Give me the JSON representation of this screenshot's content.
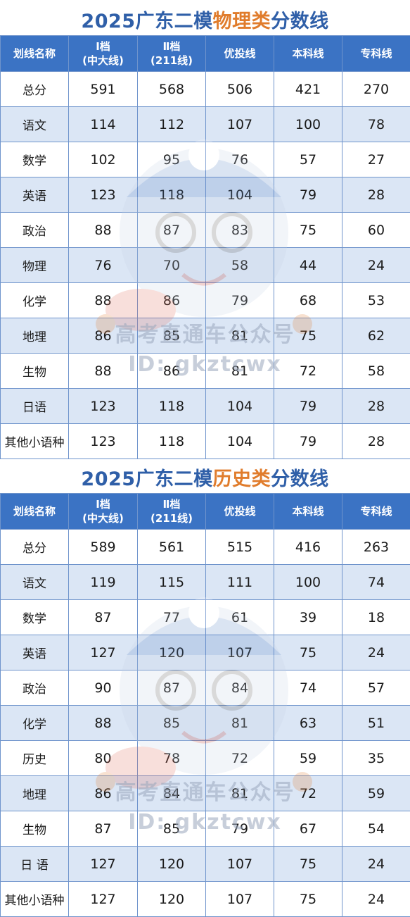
{
  "physics": {
    "title_pre": "2025广东二模",
    "title_accent": "物理类",
    "title_post": "分数线",
    "headers": [
      "划线名称",
      "Ⅰ档\n(中大线)",
      "Ⅱ档\n(211线)",
      "优投线",
      "本科线",
      "专科线"
    ],
    "rows": [
      [
        "总分",
        "591",
        "568",
        "506",
        "421",
        "270"
      ],
      [
        "语文",
        "114",
        "112",
        "107",
        "100",
        "78"
      ],
      [
        "数学",
        "102",
        "95",
        "76",
        "57",
        "27"
      ],
      [
        "英语",
        "123",
        "118",
        "104",
        "79",
        "28"
      ],
      [
        "政治",
        "88",
        "87",
        "83",
        "75",
        "60"
      ],
      [
        "物理",
        "76",
        "70",
        "58",
        "44",
        "24"
      ],
      [
        "化学",
        "88",
        "86",
        "79",
        "68",
        "53"
      ],
      [
        "地理",
        "86",
        "85",
        "81",
        "75",
        "62"
      ],
      [
        "生物",
        "88",
        "86",
        "81",
        "72",
        "58"
      ],
      [
        "日语",
        "123",
        "118",
        "104",
        "79",
        "28"
      ],
      [
        "其他小语种",
        "123",
        "118",
        "104",
        "79",
        "28"
      ]
    ]
  },
  "history": {
    "title_pre": "2025广东二模",
    "title_accent": "历史类",
    "title_post": "分数线",
    "headers": [
      "划线名称",
      "Ⅰ档\n(中大线)",
      "Ⅱ档\n(211线)",
      "优投线",
      "本科线",
      "专科线"
    ],
    "rows": [
      [
        "总分",
        "589",
        "561",
        "515",
        "416",
        "263"
      ],
      [
        "语文",
        "119",
        "115",
        "111",
        "100",
        "74"
      ],
      [
        "数学",
        "87",
        "77",
        "61",
        "39",
        "18"
      ],
      [
        "英语",
        "127",
        "120",
        "107",
        "75",
        "24"
      ],
      [
        "政治",
        "90",
        "87",
        "84",
        "74",
        "57"
      ],
      [
        "化学",
        "88",
        "85",
        "81",
        "63",
        "51"
      ],
      [
        "历史",
        "80",
        "78",
        "72",
        "59",
        "35"
      ],
      [
        "地理",
        "86",
        "84",
        "81",
        "72",
        "59"
      ],
      [
        "生物",
        "87",
        "85",
        "79",
        "67",
        "54"
      ],
      [
        "日 语",
        "127",
        "120",
        "107",
        "75",
        "24"
      ],
      [
        "其他小语种",
        "127",
        "120",
        "107",
        "75",
        "24"
      ]
    ]
  },
  "watermark": {
    "line1": "高考直通车公众号",
    "line2": "ID: gkztcwx"
  },
  "colors": {
    "title_blue": "#2f5fa8",
    "title_accent": "#e07c2c",
    "header_bg": "#3b73c4",
    "stripe": "#dbe6f5",
    "border": "#6f94cc"
  }
}
